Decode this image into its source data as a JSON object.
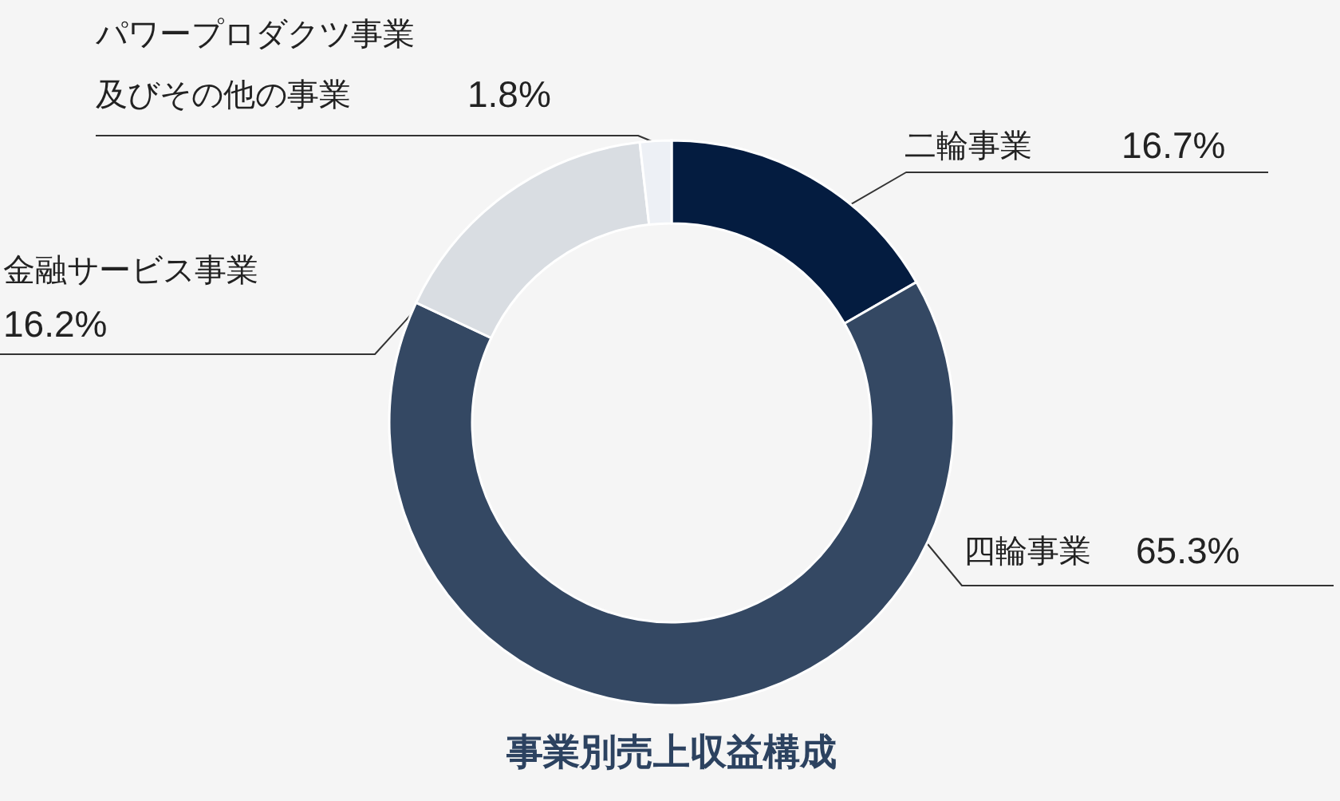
{
  "chart_data": {
    "type": "donut",
    "title": "事業別売上収益構成",
    "categories": [
      "二輪事業",
      "四輪事業",
      "金融サービス事業",
      "パワープロダクツ事業及びその他の事業"
    ],
    "values": [
      16.7,
      65.3,
      16.2,
      1.8
    ],
    "value_labels": [
      "16.7%",
      "65.3%",
      "16.2%",
      "1.8%"
    ],
    "colors": [
      "#041c40",
      "#344863",
      "#d9dde2",
      "#edf0f5"
    ]
  }
}
